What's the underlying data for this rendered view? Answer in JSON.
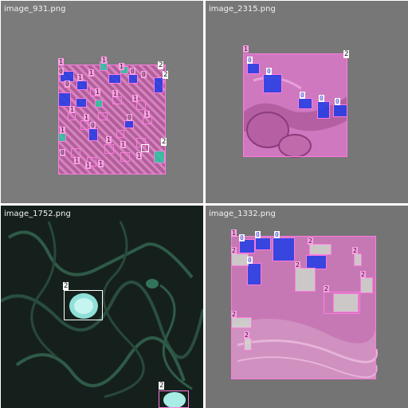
{
  "panels": [
    {
      "filename": "image_931.png"
    },
    {
      "filename": "image_2315.png"
    },
    {
      "filename": "image_1752.png"
    },
    {
      "filename": "image_1332.png"
    }
  ],
  "labels": {
    "zero": "0",
    "one": "1",
    "two": "2"
  },
  "colors": {
    "tissue_pink": "#d46fc0",
    "mask_blue": "#1e3ce6",
    "mask_teal": "#28c8a0",
    "mask_grey": "#cddccd",
    "box_pink": "#ff7be0",
    "box_white": "#ffffff"
  }
}
